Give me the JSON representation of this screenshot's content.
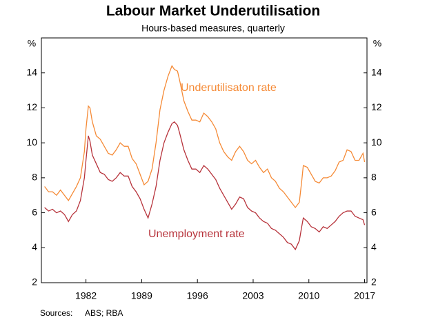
{
  "chart_data": {
    "type": "line",
    "title": "Labour Market Underutilisation",
    "subtitle": "Hours-based measures, quarterly",
    "y_unit": "%",
    "y2_unit": "%",
    "sources_label": "Sources:",
    "sources": "ABS; RBA",
    "x": [
      1976.8,
      1977.3,
      1977.8,
      1978.3,
      1978.8,
      1979.3,
      1979.8,
      1980.3,
      1980.8,
      1981.3,
      1981.8,
      1982.0,
      1982.3,
      1982.5,
      1982.8,
      1983.3,
      1983.8,
      1984.3,
      1984.8,
      1985.3,
      1985.8,
      1986.3,
      1986.8,
      1987.3,
      1987.8,
      1988.3,
      1988.8,
      1989.3,
      1989.8,
      1990.3,
      1990.8,
      1991.3,
      1991.8,
      1992.3,
      1992.8,
      1993.1,
      1993.5,
      1993.8,
      1994.3,
      1994.8,
      1995.3,
      1995.8,
      1996.3,
      1996.8,
      1997.3,
      1997.8,
      1998.3,
      1998.8,
      1999.3,
      1999.8,
      2000.3,
      2000.8,
      2001.3,
      2001.8,
      2002.3,
      2002.8,
      2003.3,
      2003.8,
      2004.3,
      2004.8,
      2005.3,
      2005.8,
      2006.3,
      2006.8,
      2007.3,
      2007.8,
      2008.3,
      2008.8,
      2009.1,
      2009.3,
      2009.8,
      2010.3,
      2010.8,
      2011.3,
      2011.8,
      2012.3,
      2012.8,
      2013.3,
      2013.8,
      2014.3,
      2014.8,
      2015.3,
      2015.8,
      2016.3,
      2016.8,
      2017.0
    ],
    "series": [
      {
        "name": "Underutilisaton rate",
        "color": "#f58a36",
        "values": [
          7.5,
          7.2,
          7.2,
          7.0,
          7.3,
          7.0,
          6.7,
          7.1,
          7.5,
          8.0,
          9.5,
          10.8,
          12.1,
          12.0,
          11.2,
          10.4,
          10.2,
          9.8,
          9.4,
          9.3,
          9.6,
          10.0,
          9.8,
          9.8,
          9.1,
          8.8,
          8.2,
          7.6,
          7.8,
          8.5,
          10.0,
          11.9,
          13.0,
          13.8,
          14.4,
          14.2,
          14.1,
          13.5,
          12.4,
          11.8,
          11.3,
          11.3,
          11.2,
          11.7,
          11.5,
          11.2,
          10.8,
          10.0,
          9.5,
          9.2,
          9.0,
          9.5,
          9.8,
          9.5,
          9.0,
          8.8,
          9.0,
          8.6,
          8.3,
          8.5,
          8.0,
          7.8,
          7.4,
          7.2,
          6.9,
          6.6,
          6.3,
          6.6,
          7.8,
          8.7,
          8.6,
          8.2,
          7.8,
          7.7,
          8.0,
          8.0,
          8.1,
          8.4,
          8.9,
          9.0,
          9.6,
          9.5,
          9.0,
          9.0,
          9.4,
          8.9
        ]
      },
      {
        "name": "Unemployment rate",
        "color": "#b7333b",
        "values": [
          6.3,
          6.1,
          6.2,
          6.0,
          6.1,
          5.9,
          5.5,
          5.9,
          6.1,
          6.7,
          8.0,
          9.0,
          10.4,
          10.1,
          9.3,
          8.8,
          8.3,
          8.2,
          7.9,
          7.8,
          8.0,
          8.3,
          8.1,
          8.1,
          7.5,
          7.2,
          6.8,
          6.2,
          5.7,
          6.5,
          7.5,
          9.0,
          10.0,
          10.6,
          11.1,
          11.2,
          11.0,
          10.5,
          9.6,
          9.0,
          8.5,
          8.5,
          8.3,
          8.7,
          8.5,
          8.2,
          7.9,
          7.4,
          7.0,
          6.6,
          6.2,
          6.5,
          6.9,
          6.8,
          6.3,
          6.1,
          6.0,
          5.7,
          5.5,
          5.4,
          5.1,
          5.0,
          4.8,
          4.6,
          4.3,
          4.2,
          3.9,
          4.4,
          5.2,
          5.7,
          5.5,
          5.2,
          5.1,
          4.9,
          5.2,
          5.1,
          5.3,
          5.5,
          5.8,
          6.0,
          6.1,
          6.1,
          5.8,
          5.7,
          5.6,
          5.3
        ]
      }
    ],
    "xlim": [
      1976.4,
      2017.3
    ],
    "xticks": [
      1982,
      1989,
      1996,
      2003,
      2010,
      2017
    ],
    "ylim": [
      2,
      16
    ],
    "yticks": [
      2,
      4,
      6,
      8,
      10,
      12,
      14
    ],
    "y2lim": [
      2,
      16
    ],
    "y2ticks": [
      2,
      4,
      6,
      8,
      10,
      12,
      14
    ]
  }
}
